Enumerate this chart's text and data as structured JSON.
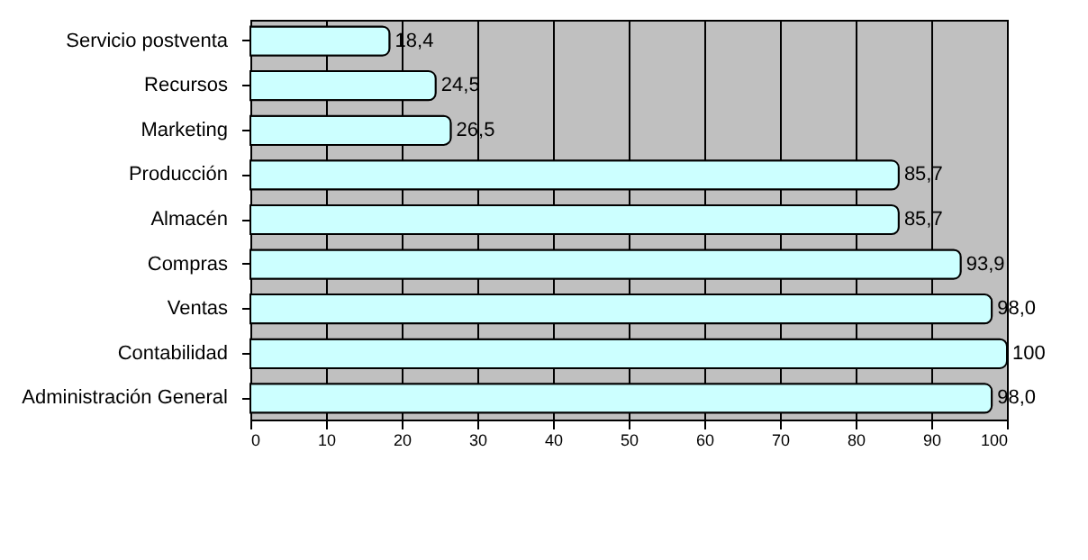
{
  "chart_data": {
    "type": "bar",
    "orientation": "horizontal",
    "categories": [
      "Servicio postventa",
      "Recursos",
      "Marketing",
      "Producción",
      "Almacén",
      "Compras",
      "Ventas",
      "Contabilidad",
      "Administración General"
    ],
    "values": [
      18.4,
      24.5,
      26.5,
      85.7,
      85.7,
      93.9,
      98.0,
      100,
      98.0
    ],
    "value_labels": [
      "18,4",
      "24,5",
      "26,5",
      "85,7",
      "85,7",
      "93,9",
      "98,0",
      "100",
      "98,0"
    ],
    "color": "#ccffff",
    "xlim": [
      0,
      100
    ],
    "xticks": [
      0,
      10,
      20,
      30,
      40,
      50,
      60,
      70,
      80,
      90,
      100
    ],
    "grid": "x"
  }
}
